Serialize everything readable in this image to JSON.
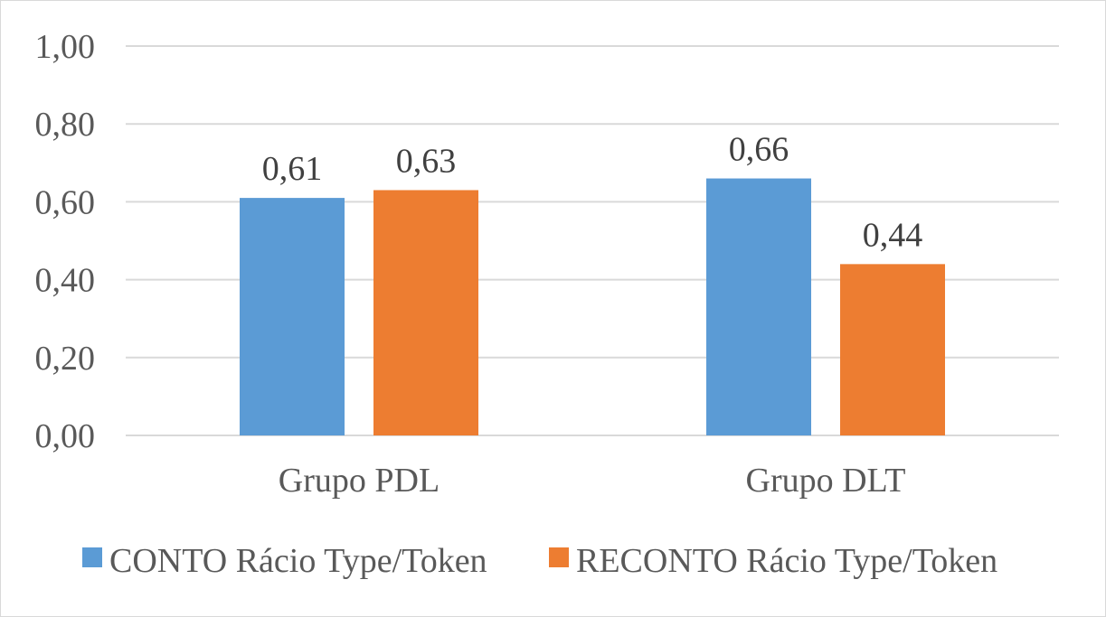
{
  "chart_data": {
    "type": "bar",
    "title": "",
    "xlabel": "",
    "ylabel": "",
    "categories": [
      "Grupo PDL",
      "Grupo DLT"
    ],
    "series": [
      {
        "name": "CONTO Rácio Type/Token",
        "values": [
          0.61,
          0.66
        ],
        "labels": [
          "0,61",
          "0,66"
        ],
        "color": "#5b9bd5"
      },
      {
        "name": "RECONTO Rácio Type/Token",
        "values": [
          0.63,
          0.44
        ],
        "labels": [
          "0,63",
          "0,44"
        ],
        "color": "#ed7d31"
      }
    ],
    "ylim": [
      0,
      1
    ],
    "yticks": [
      0,
      0.2,
      0.4,
      0.6,
      0.8,
      1.0
    ],
    "ytick_labels": [
      "0,00",
      "0,20",
      "0,40",
      "0,60",
      "0,80",
      "1,00"
    ],
    "grid": true,
    "legend_position": "bottom"
  },
  "colors": {
    "gridline": "#d9d9d9",
    "axis": "#d9d9d9",
    "frame": "#d9d9d9"
  }
}
